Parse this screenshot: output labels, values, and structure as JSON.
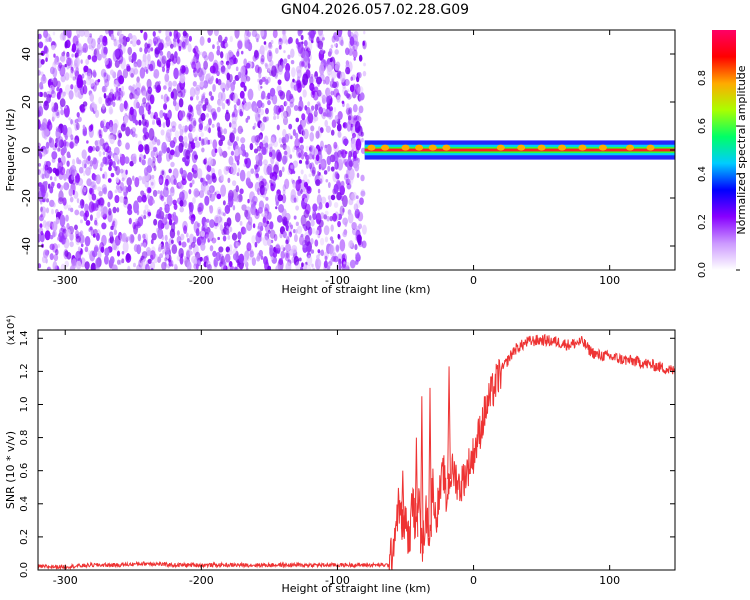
{
  "figure": {
    "title": "GN04.2026.057.02.28.G09"
  },
  "chart_data": [
    {
      "type": "heatmap",
      "title": "GN04.2026.057.02.28.G09",
      "xlabel": "Height of straight line (km)",
      "ylabel": "Frequency (Hz)",
      "xlim": [
        -320,
        148
      ],
      "ylim": [
        -50,
        50
      ],
      "x_ticks": [
        -300,
        -200,
        -100,
        0,
        100
      ],
      "y_ticks": [
        -40,
        -20,
        0,
        20,
        40
      ],
      "x_tick_labels": [
        "-300",
        "-200",
        "-100",
        "0",
        "100"
      ],
      "y_tick_labels": [
        "-40",
        "-20",
        "0",
        "20",
        "40"
      ],
      "colorbar": {
        "label": "Normalized spectral amplitude",
        "range": [
          0,
          1
        ],
        "ticks": [
          0.0,
          0.2,
          0.4,
          0.6,
          0.8
        ],
        "tick_labels": [
          "0.0",
          "0.2",
          "0.4",
          "0.6",
          "0.8"
        ],
        "colormap": [
          "#ffffff",
          "#cc99ff",
          "#8800ff",
          "#0000ff",
          "#00ccff",
          "#00ff66",
          "#aaff00",
          "#ffaa00",
          "#ff0000",
          "#ff0066"
        ]
      },
      "regions": [
        {
          "x_range": [
            -320,
            -80
          ],
          "f_range": [
            -50,
            50
          ],
          "description_level": 0.15
        },
        {
          "x_range": [
            -80,
            148
          ],
          "f_range": [
            -2,
            2
          ],
          "description_level": 0.9
        }
      ],
      "band_peaks_x": [
        -75,
        -65,
        -50,
        -40,
        -30,
        -20,
        20,
        35,
        50,
        65,
        80,
        95,
        115,
        130
      ],
      "grid": false
    },
    {
      "type": "line",
      "xlabel": "Height of straight line (km)",
      "ylabel": "SNR (10 * v/v)",
      "y_multiplier_label": "(x10⁴)",
      "xlim": [
        -320,
        148
      ],
      "ylim": [
        0,
        1.45
      ],
      "x_ticks": [
        -300,
        -200,
        -100,
        0,
        100
      ],
      "y_ticks": [
        0.0,
        0.2,
        0.4,
        0.6,
        0.8,
        1.0,
        1.2,
        1.4
      ],
      "x_tick_labels": [
        "-300",
        "-200",
        "-100",
        "0",
        "100"
      ],
      "y_tick_labels": [
        "0.0",
        "0.2",
        "0.4",
        "0.6",
        "0.8",
        "1.0",
        "1.2",
        "1.4"
      ],
      "color": "#ee3333",
      "series": [
        {
          "x": [
            -320,
            -300,
            -280,
            -260,
            -240,
            -220,
            -200,
            -180,
            -160,
            -140,
            -120,
            -100,
            -80,
            -62,
            -60,
            -55,
            -52,
            -50,
            -47,
            -45,
            -42,
            -40,
            -38,
            -35,
            -32,
            -30,
            -28,
            -25,
            -22,
            -20,
            -18,
            -15,
            -10,
            -5,
            0,
            5,
            10,
            20,
            30,
            40,
            50,
            60,
            70,
            80,
            85,
            90,
            100,
            110,
            120,
            130,
            140,
            148
          ],
          "values": [
            0.02,
            0.02,
            0.03,
            0.03,
            0.04,
            0.03,
            0.03,
            0.03,
            0.03,
            0.03,
            0.03,
            0.03,
            0.03,
            0.03,
            0.1,
            0.4,
            0.25,
            0.3,
            0.15,
            0.45,
            0.2,
            0.6,
            0.1,
            0.35,
            0.2,
            0.55,
            0.3,
            0.45,
            0.6,
            0.4,
            0.55,
            0.6,
            0.5,
            0.6,
            0.7,
            0.85,
            1.0,
            1.2,
            1.33,
            1.38,
            1.39,
            1.38,
            1.36,
            1.38,
            1.33,
            1.3,
            1.29,
            1.27,
            1.26,
            1.24,
            1.22,
            1.2
          ],
          "spikes": [
            {
              "x": -52,
              "value": 0.6
            },
            {
              "x": -42,
              "value": 0.8
            },
            {
              "x": -38,
              "value": 1.05
            },
            {
              "x": -32,
              "value": 1.1
            },
            {
              "x": -18,
              "value": 1.23
            }
          ]
        }
      ],
      "grid": false
    }
  ]
}
